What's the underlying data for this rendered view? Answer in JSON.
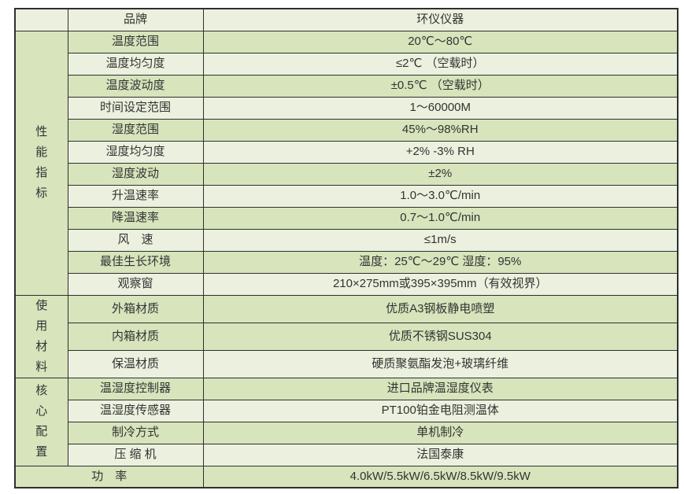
{
  "colors": {
    "row-green": "#d7e4bc",
    "row-cream": "#ebf1de",
    "border": "#2f2f2f",
    "text": "#333333",
    "page-bg": "#ffffff"
  },
  "table": {
    "header": {
      "brand_label": "品牌",
      "brand_value": "环仪仪器"
    },
    "sections": [
      {
        "group": "性能指标",
        "rows": [
          {
            "label": "温度范围",
            "value": "20℃～80℃"
          },
          {
            "label": "温度均匀度",
            "value": "≤2℃ （空载时）"
          },
          {
            "label": "温度波动度",
            "value": "±0.5℃ （空载时）"
          },
          {
            "label": "时间设定范围",
            "value": "1～60000M"
          },
          {
            "label": "湿度范围",
            "value": "45%～98%RH"
          },
          {
            "label": "湿度均匀度",
            "value": "+2% -3% RH"
          },
          {
            "label": "湿度波动",
            "value": "±2%"
          },
          {
            "label": "升温速率",
            "value": "1.0～3.0℃/min"
          },
          {
            "label": "降温速率",
            "value": "0.7～1.0℃/min"
          },
          {
            "label": "风　速",
            "value": "≤1m/s"
          },
          {
            "label": "最佳生长环境",
            "value": "温度：25℃～29℃ 湿度：95%"
          },
          {
            "label": "观察窗",
            "value": "210×275mm或395×395mm（有效视界）"
          }
        ]
      },
      {
        "group": "使用材料",
        "rows": [
          {
            "label": "外箱材质",
            "value": "优质A3钢板静电喷塑"
          },
          {
            "label": "内箱材质",
            "value": "优质不锈钢SUS304"
          },
          {
            "label": "保温材质",
            "value": "硬质聚氨酯发泡+玻璃纤维"
          }
        ]
      },
      {
        "group": "核心配置",
        "rows": [
          {
            "label": "温湿度控制器",
            "value": "进口品牌温湿度仪表"
          },
          {
            "label": "温湿度传感器",
            "value": "PT100铂金电阻测温体"
          },
          {
            "label": "制冷方式",
            "value": "单机制冷"
          },
          {
            "label": "压 缩 机",
            "value": "法国泰康"
          }
        ]
      }
    ],
    "footer": {
      "label": "功　率",
      "value": "4.0kW/5.5kW/6.5kW/8.5kW/9.5kW"
    }
  }
}
